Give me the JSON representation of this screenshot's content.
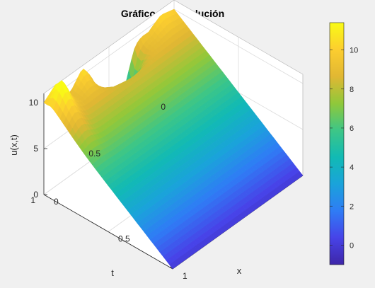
{
  "window_title": "",
  "chart_data": {
    "type": "surface",
    "title": "Gráfico de la solución",
    "xlabel": "x",
    "ylabel": "t",
    "zlabel": "u(x,t)",
    "xlim": [
      0,
      1
    ],
    "ylim": [
      0,
      1
    ],
    "zlim": [
      0,
      11
    ],
    "x_ticks": [
      {
        "v": 0,
        "label": "0"
      },
      {
        "v": 0.5,
        "label": "0.5"
      },
      {
        "v": 1,
        "label": "1"
      }
    ],
    "y_ticks": [
      {
        "v": 0,
        "label": "0"
      },
      {
        "v": 0.5,
        "label": "0.5"
      },
      {
        "v": 1,
        "label": "1"
      }
    ],
    "z_ticks": [
      {
        "v": 0,
        "label": "0"
      },
      {
        "v": 5,
        "label": "5"
      },
      {
        "v": 10,
        "label": "10"
      }
    ],
    "grid": true,
    "colormap": "parula",
    "colormap_colors": [
      "#3e26a8",
      "#4743e8",
      "#2f7cf5",
      "#1aa3da",
      "#11bab4",
      "#3ec686",
      "#90c83a",
      "#e1b733",
      "#fcce2f",
      "#f9fb15"
    ],
    "colorbar": {
      "limits": [
        -1,
        11.4
      ],
      "ticks": [
        {
          "v": 0,
          "label": "0"
        },
        {
          "v": 2,
          "label": "2"
        },
        {
          "v": 4,
          "label": "4"
        },
        {
          "v": 6,
          "label": "6"
        },
        {
          "v": 8,
          "label": "8"
        },
        {
          "v": 10,
          "label": "10"
        }
      ],
      "placement": "right"
    },
    "surface_description_series": [
      {
        "name": "",
        "at_t": 0,
        "x": [
          0,
          0.25,
          0.5,
          0.75,
          1
        ],
        "u": [
          10,
          7.5,
          5,
          2.5,
          0
        ]
      },
      {
        "name": "",
        "at_x": 0,
        "t": [
          0,
          0.1,
          0.2,
          0.3,
          0.4,
          0.5,
          0.6,
          0.7,
          0.8,
          0.9,
          1
        ],
        "u": [
          10,
          10.4,
          9.6,
          10.5,
          9.5,
          10.6,
          9.3,
          10.8,
          9.0,
          11.2,
          10
        ]
      }
    ]
  }
}
